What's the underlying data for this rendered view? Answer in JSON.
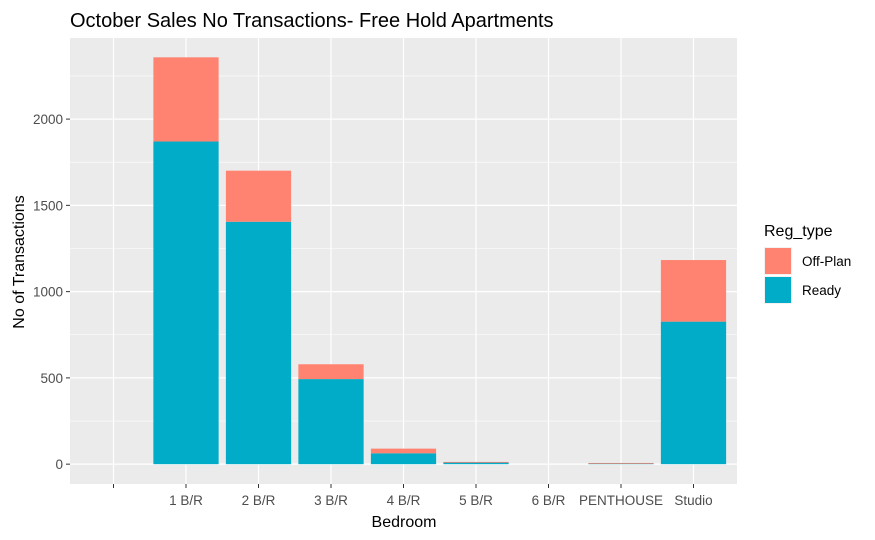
{
  "chart_data": {
    "type": "bar",
    "stacked": true,
    "title": "October Sales No Transactions- Free Hold Apartments",
    "xlabel": "Bedroom",
    "ylabel": "No of Transactions",
    "categories": [
      "",
      "1 B/R",
      "2 B/R",
      "3 B/R",
      "4 B/R",
      "5 B/R",
      "6 B/R",
      "PENTHOUSE",
      "Studio"
    ],
    "series": [
      {
        "name": "Ready",
        "color": "#00ACC8",
        "values": [
          0,
          1870,
          1405,
          493,
          63,
          10,
          0,
          5,
          826
        ]
      },
      {
        "name": "Off-Plan",
        "color": "#FF8370",
        "values": [
          0,
          488,
          296,
          86,
          27,
          3,
          0,
          2,
          357
        ]
      }
    ],
    "ylim": [
      -115,
      2470
    ],
    "yticks": [
      0,
      500,
      1000,
      1500,
      2000
    ],
    "ytick_labels": [
      "0",
      "500",
      "1000",
      "1500",
      "2000"
    ],
    "grid": true,
    "panel_background": "#EBEBEB",
    "legend": {
      "title": "Reg_type",
      "position": "right",
      "entries": [
        {
          "label": "Off-Plan",
          "color": "#FF8370"
        },
        {
          "label": "Ready",
          "color": "#00ACC8"
        }
      ]
    }
  }
}
